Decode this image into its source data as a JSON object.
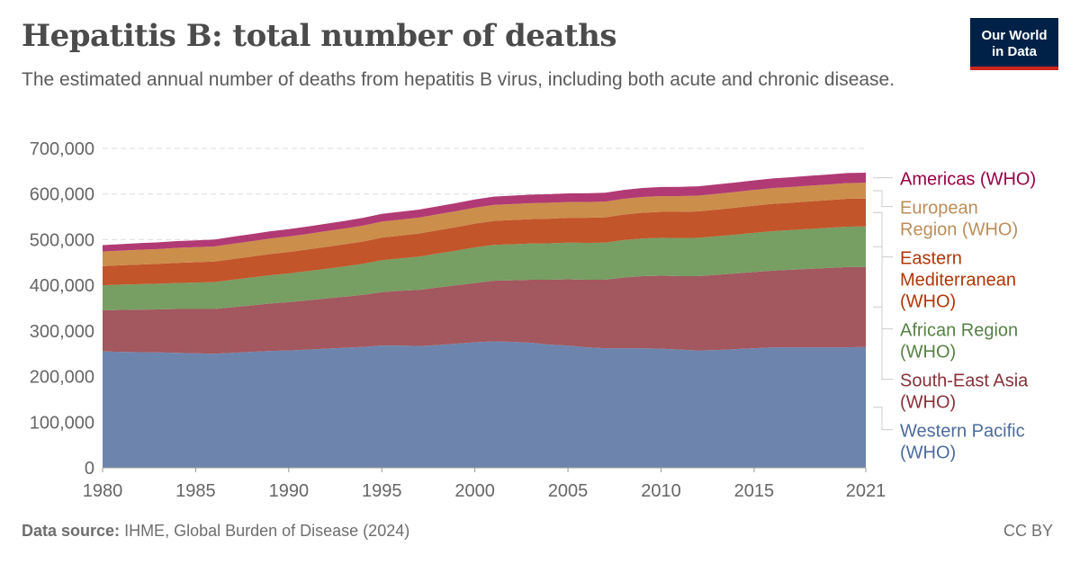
{
  "header": {
    "title": "Hepatitis B: total number of deaths",
    "subtitle": "The estimated annual number of deaths from hepatitis B virus, including both acute and chronic disease."
  },
  "logo": {
    "line1": "Our World",
    "line2": "in Data",
    "bg_color": "#002147",
    "accent_color": "#ce261e"
  },
  "footer": {
    "source_label": "Data source:",
    "source_text": "IHME, Global Burden of Disease (2024)",
    "license": "CC BY"
  },
  "chart_data": {
    "type": "area",
    "stacked": true,
    "title": "Hepatitis B: total number of deaths",
    "x": [
      1980,
      1981,
      1982,
      1983,
      1984,
      1985,
      1986,
      1987,
      1988,
      1989,
      1990,
      1991,
      1992,
      1993,
      1994,
      1995,
      1996,
      1997,
      1998,
      1999,
      2000,
      2001,
      2002,
      2003,
      2004,
      2005,
      2006,
      2007,
      2008,
      2009,
      2010,
      2011,
      2012,
      2013,
      2014,
      2015,
      2016,
      2017,
      2018,
      2019,
      2020,
      2021
    ],
    "x_range": [
      1979,
      2022
    ],
    "ylim": [
      0,
      700000
    ],
    "y_ticks": [
      0,
      100000,
      200000,
      300000,
      400000,
      500000,
      600000,
      700000
    ],
    "y_tick_labels": [
      "0",
      "100,000",
      "200,000",
      "300,000",
      "400,000",
      "500,000",
      "600,000",
      "700,000"
    ],
    "x_ticks": [
      1980,
      1985,
      1990,
      1995,
      2000,
      2005,
      2010,
      2015,
      2021
    ],
    "x_tick_labels": [
      "1980",
      "1985",
      "1990",
      "1995",
      "2000",
      "2005",
      "2010",
      "2015",
      "2021"
    ],
    "grid": "horizontal-dashed",
    "legend_placement": "right",
    "series": [
      {
        "name": "Western Pacific (WHO)",
        "name_lines": [
          "Western Pacific",
          "(WHO)"
        ],
        "color": "#6d85ad",
        "label_color": "#4c6a9c",
        "values": [
          255000,
          254000,
          253500,
          253000,
          252000,
          251000,
          250000,
          252000,
          254000,
          256000,
          257000,
          259000,
          261000,
          263000,
          265000,
          268000,
          268000,
          267000,
          269000,
          272000,
          275000,
          277000,
          276000,
          274000,
          270000,
          268000,
          264000,
          262000,
          262000,
          262000,
          261000,
          259000,
          257000,
          258000,
          260000,
          262000,
          264000,
          264000,
          264000,
          264000,
          264000,
          265000
        ]
      },
      {
        "name": "South-East Asia (WHO)",
        "name_lines": [
          "South-East Asia",
          "(WHO)"
        ],
        "color": "#a3575f",
        "label_color": "#883039",
        "values": [
          90000,
          92000,
          93000,
          94000,
          96000,
          97000,
          98000,
          100000,
          102000,
          104000,
          106000,
          108000,
          110000,
          112000,
          114000,
          117000,
          120000,
          123000,
          126000,
          128000,
          130000,
          133000,
          135000,
          138000,
          142000,
          145000,
          148000,
          150000,
          155000,
          158000,
          160000,
          161000,
          163000,
          165000,
          166000,
          167000,
          168000,
          170000,
          172000,
          174000,
          176000,
          175000
        ]
      },
      {
        "name": "African Region (WHO)",
        "name_lines": [
          "African Region",
          "(WHO)"
        ],
        "color": "#779e63",
        "label_color": "#578145",
        "values": [
          55000,
          55500,
          56000,
          56500,
          57000,
          58000,
          59000,
          60000,
          61000,
          62000,
          63000,
          64000,
          65000,
          66500,
          68000,
          70000,
          71000,
          73000,
          74500,
          76000,
          78000,
          78500,
          79000,
          79500,
          80000,
          80500,
          81000,
          81500,
          82000,
          82500,
          83000,
          83500,
          84000,
          84500,
          85000,
          86000,
          86500,
          87000,
          87500,
          88000,
          88500,
          89000
        ]
      },
      {
        "name": "Eastern Mediterranean (WHO)",
        "name_lines": [
          "Eastern",
          "Mediterranean",
          "(WHO)"
        ],
        "color": "#c2552a",
        "label_color": "#b13507",
        "values": [
          42000,
          42500,
          43000,
          43500,
          44000,
          44500,
          45000,
          45500,
          46000,
          46500,
          47000,
          47500,
          48000,
          48500,
          49000,
          49500,
          50000,
          50500,
          51000,
          51500,
          52000,
          52500,
          53000,
          53500,
          54000,
          54500,
          55000,
          55500,
          56000,
          56500,
          57000,
          57500,
          58000,
          58500,
          59000,
          59500,
          60000,
          60000,
          60500,
          60500,
          61000,
          61000
        ]
      },
      {
        "name": "European Region (WHO)",
        "name_lines": [
          "European",
          "Region (WHO)"
        ],
        "color": "#cc8e4b",
        "label_color": "#bc8e5a",
        "values": [
          32000,
          32000,
          32500,
          32500,
          33000,
          33000,
          33000,
          33500,
          33500,
          34000,
          34000,
          34000,
          34500,
          34500,
          35000,
          35000,
          35000,
          35000,
          35000,
          35000,
          35000,
          35000,
          35000,
          35000,
          35000,
          34500,
          34500,
          34500,
          34500,
          34500,
          34500,
          34500,
          34500,
          34500,
          34500,
          34500,
          34500,
          34500,
          34500,
          34500,
          34500,
          34500
        ]
      },
      {
        "name": "Americas (WHO)",
        "name_lines": [
          "Americas (WHO)"
        ],
        "color": "#b13a74",
        "label_color": "#970046",
        "values": [
          14000,
          14200,
          14400,
          14600,
          14800,
          15000,
          15200,
          15400,
          15600,
          15800,
          16000,
          16200,
          16400,
          16600,
          16800,
          17000,
          17200,
          17400,
          17600,
          17800,
          18000,
          18200,
          18400,
          18600,
          18800,
          19000,
          19200,
          19400,
          19600,
          19800,
          20000,
          20200,
          20400,
          20600,
          20800,
          21000,
          21200,
          21400,
          21600,
          21800,
          22000,
          22200
        ]
      }
    ]
  }
}
